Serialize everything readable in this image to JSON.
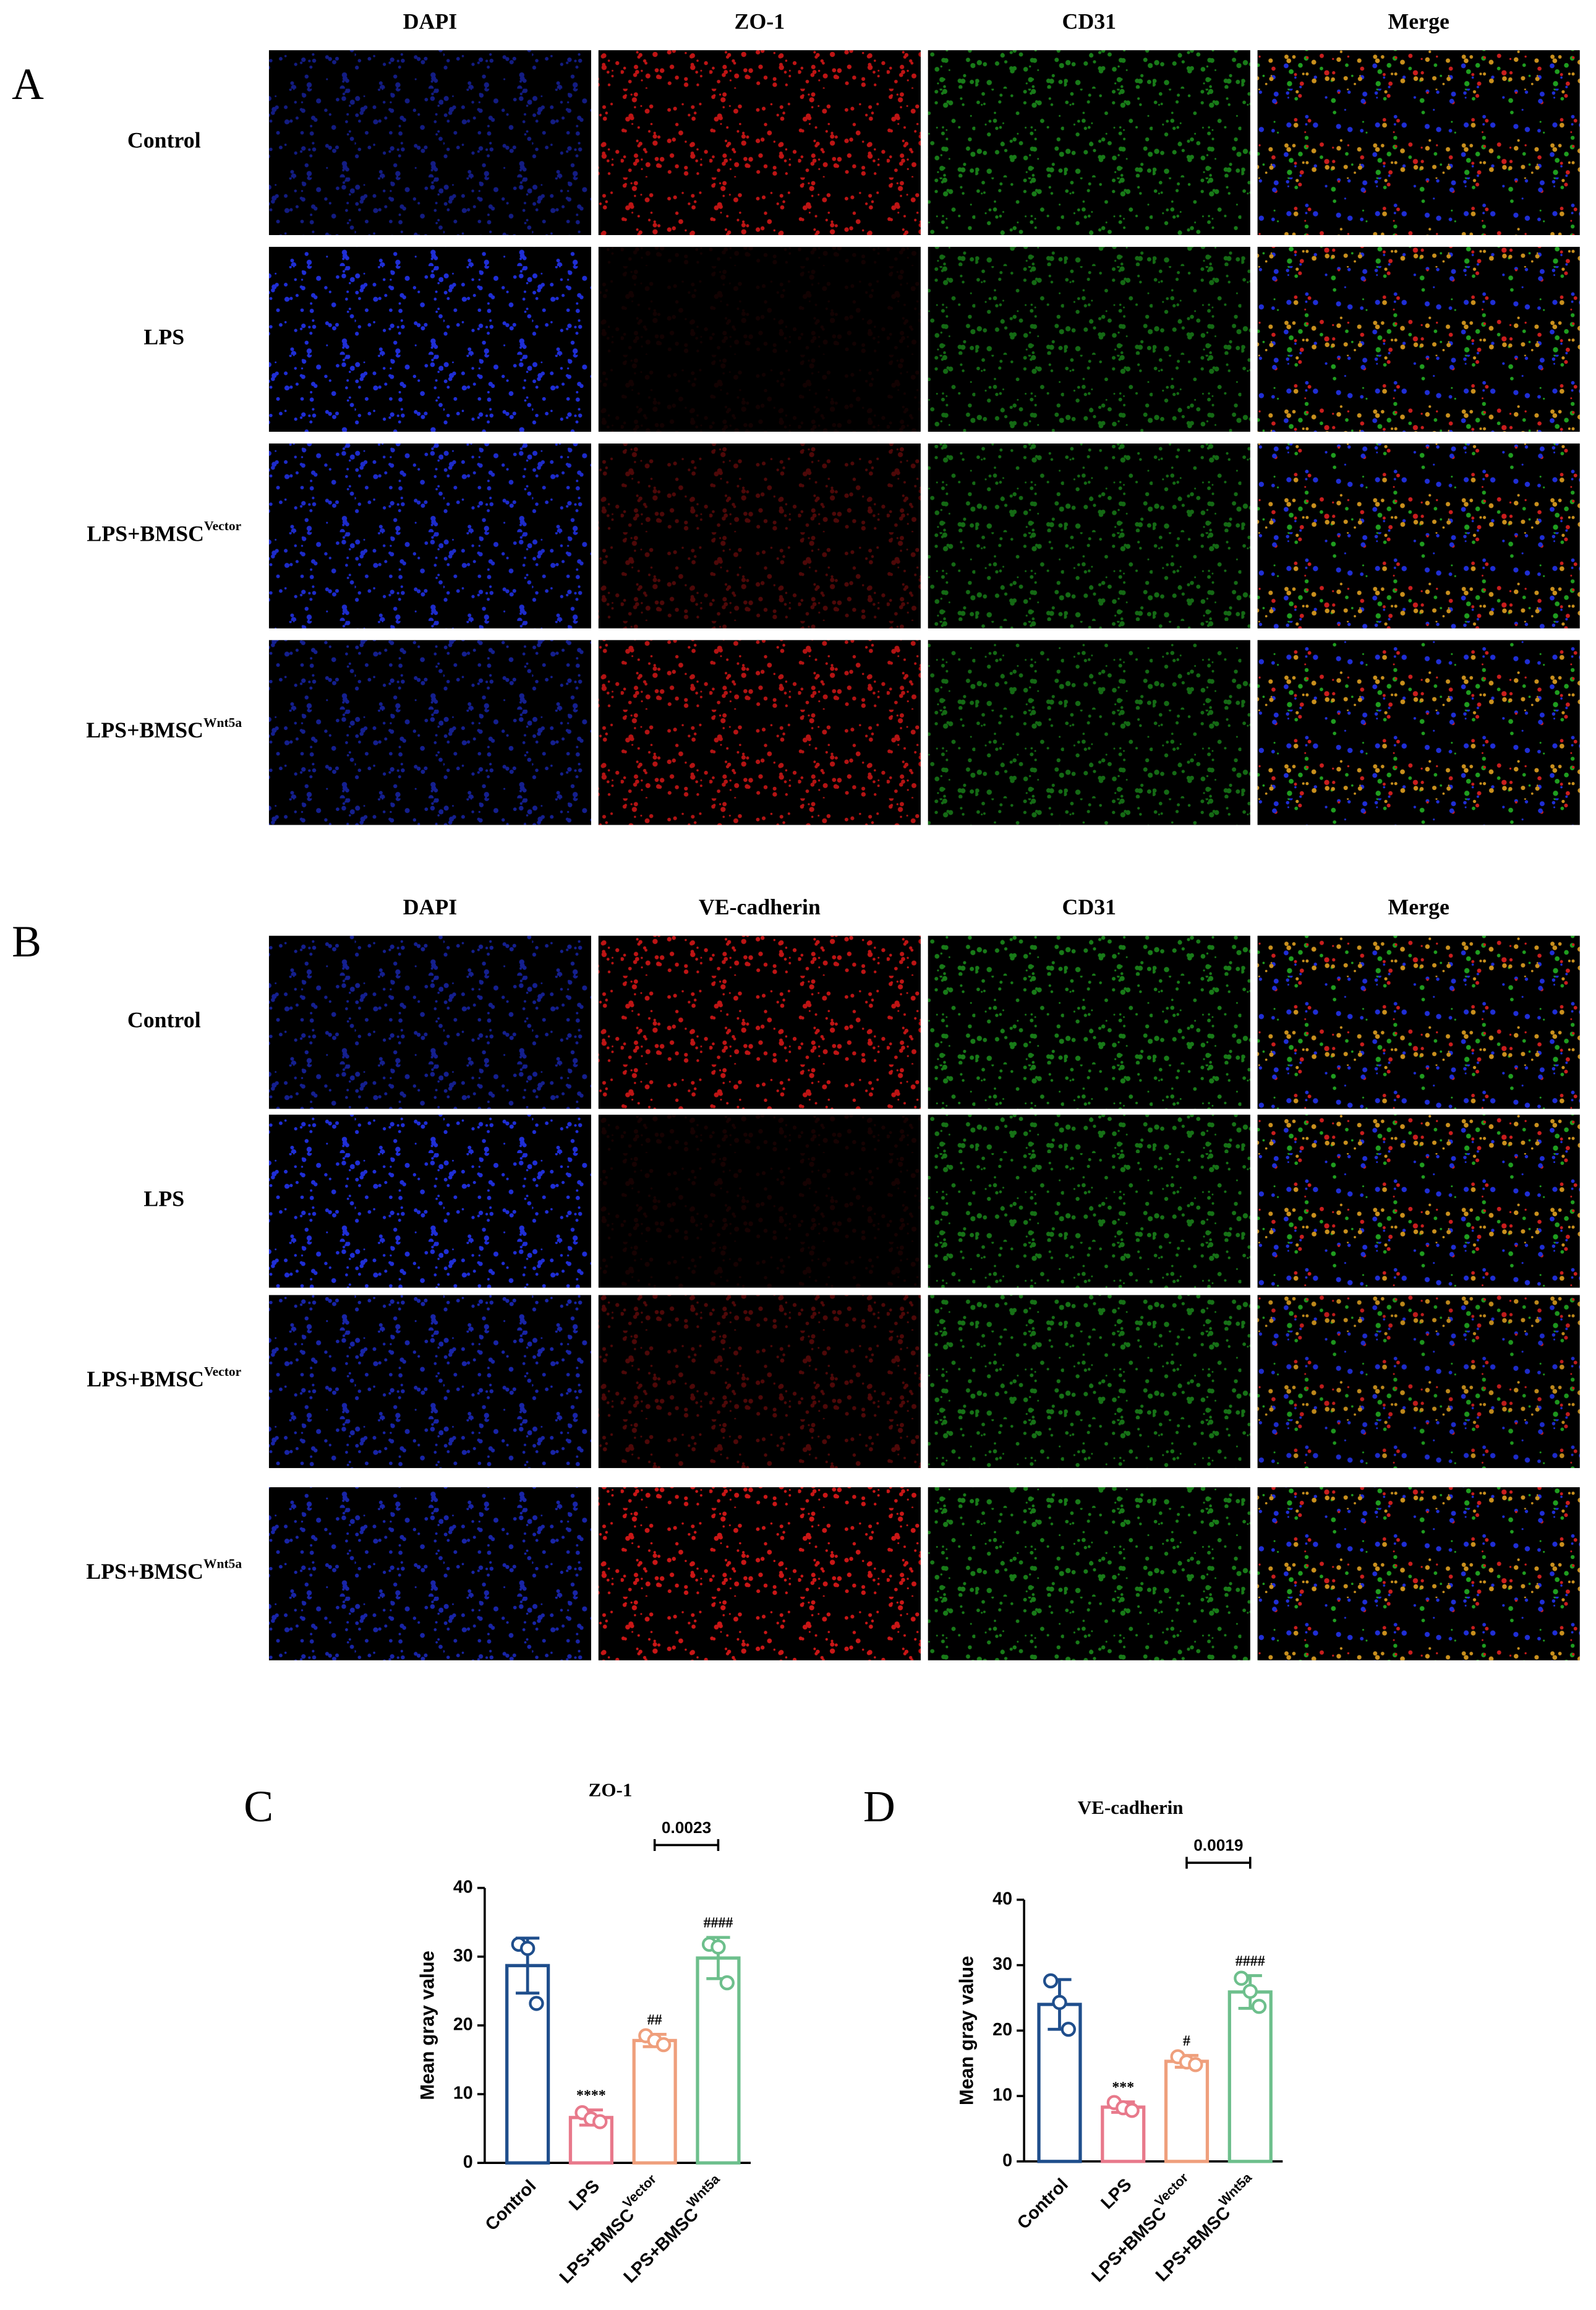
{
  "panels": [
    {
      "letter": "A",
      "columns": [
        "DAPI",
        "ZO-1",
        "CD31",
        "Merge"
      ],
      "rows": [
        {
          "label": "Control"
        },
        {
          "label": "LPS"
        },
        {
          "label": "LPS+BMSC",
          "sup": "Vector"
        },
        {
          "label": "LPS+BMSC",
          "sup": "Wnt5a"
        }
      ]
    },
    {
      "letter": "B",
      "columns": [
        "DAPI",
        "VE-cadherin",
        "CD31",
        "Merge"
      ],
      "rows": [
        {
          "label": "Control"
        },
        {
          "label": "LPS"
        },
        {
          "label": "LPS+BMSC",
          "sup": "Vector"
        },
        {
          "label": "LPS+BMSC",
          "sup": "Wnt5a"
        }
      ]
    }
  ],
  "chart_data": [
    {
      "type": "bar",
      "panel_letter": "C",
      "title": "ZO-1",
      "y_label": "Mean gray value",
      "categories": [
        "Control",
        "LPS",
        "LPS+BMSC",
        "LPS+BMSC"
      ],
      "category_superscripts": [
        null,
        null,
        "Vector",
        "Wnt5a"
      ],
      "values": [
        28.7,
        6.6,
        17.8,
        29.8
      ],
      "errors": [
        4.0,
        1.1,
        0.9,
        3.0
      ],
      "points": [
        [
          31.8,
          31.2,
          23.2
        ],
        [
          7.3,
          6.4,
          6.0
        ],
        [
          18.5,
          17.8,
          17.2
        ],
        [
          31.8,
          31.4,
          26.2
        ]
      ],
      "colors": [
        "#1f4e8c",
        "#e8798b",
        "#ef9f7c",
        "#6dbf8c"
      ],
      "significance": [
        null,
        "****",
        "##",
        "####"
      ],
      "comparison": {
        "between": [
          2,
          3
        ],
        "p": 0.0023
      },
      "ylim": [
        0,
        40
      ],
      "yticks": [
        0,
        10,
        20,
        30,
        40
      ]
    },
    {
      "type": "bar",
      "panel_letter": "D",
      "title": "VE-cadherin",
      "y_label": "Mean gray value",
      "categories": [
        "Control",
        "LPS",
        "LPS+BMSC",
        "LPS+BMSC"
      ],
      "category_superscripts": [
        null,
        null,
        "Vector",
        "Wnt5a"
      ],
      "values": [
        24.0,
        8.3,
        15.3,
        25.9
      ],
      "errors": [
        3.8,
        0.8,
        0.9,
        2.5
      ],
      "points": [
        [
          27.6,
          24.3,
          20.2
        ],
        [
          9.0,
          8.2,
          7.8
        ],
        [
          16.0,
          15.2,
          14.8
        ],
        [
          28.0,
          26.0,
          23.7
        ]
      ],
      "colors": [
        "#1f4e8c",
        "#e8798b",
        "#ef9f7c",
        "#6dbf8c"
      ],
      "significance": [
        null,
        "***",
        "#",
        "####"
      ],
      "comparison": {
        "between": [
          2,
          3
        ],
        "p": 0.0019
      },
      "ylim": [
        0,
        40
      ],
      "yticks": [
        0,
        10,
        20,
        30,
        40
      ]
    }
  ]
}
